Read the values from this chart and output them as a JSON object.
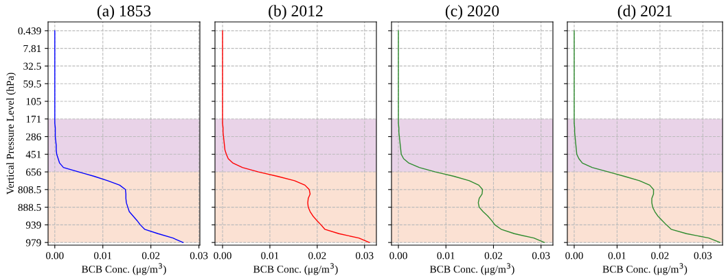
{
  "chart_data": [
    {
      "type": "line",
      "orientation": "horizontal",
      "title": "(a) 1853",
      "xlabel": "BCB Conc. (μg/m$^{3}$)",
      "ylabel": "Vertical Pressure Level (hPa)",
      "grid": true,
      "marker": "none",
      "line_style": "solid",
      "xlim": [
        -0.0014,
        0.0302
      ],
      "xticks": [
        {
          "value": 0,
          "label": "0.00"
        },
        {
          "value": 0.01,
          "label": "0.01"
        },
        {
          "value": 0.02,
          "label": "0.02"
        },
        {
          "value": 0.03,
          "label": "0.03"
        }
      ],
      "categories": [
        "0.439",
        null,
        null,
        null,
        "7.81",
        null,
        null,
        null,
        "32.5",
        null,
        null,
        null,
        "59.5",
        null,
        null,
        null,
        "105",
        null,
        null,
        null,
        "171",
        null,
        null,
        null,
        "286",
        null,
        null,
        null,
        "451",
        null,
        null,
        null,
        "656",
        null,
        null,
        null,
        "808.5",
        null,
        null,
        null,
        "888.5",
        null,
        null,
        null,
        "939",
        null,
        null,
        null,
        "979"
      ],
      "bands": [
        {
          "axis": "y",
          "from": "171",
          "to": "656",
          "color": "#e9d3e8"
        },
        {
          "axis": "y",
          "from": "656",
          "to": "979",
          "color": "#fbe1d3"
        }
      ],
      "series": [
        {
          "color": "#0000ff",
          "values": [
            0,
            0,
            0,
            0,
            0,
            0,
            0,
            0,
            0,
            0,
            0,
            0,
            0,
            0,
            0,
            0,
            0,
            0,
            0,
            0,
            0,
            0,
            0.0001,
            0.0001,
            0.0001,
            0.0002,
            0.0003,
            0.0003,
            0.0004,
            0.0007,
            0.001,
            0.0018,
            0.005,
            0.0082,
            0.011,
            0.0135,
            0.0147,
            0.0148,
            0.0148,
            0.0149,
            0.0152,
            0.0155,
            0.0163,
            0.0171,
            0.0178,
            0.0187,
            0.0215,
            0.0246,
            0.0267
          ]
        }
      ]
    },
    {
      "type": "line",
      "orientation": "horizontal",
      "title": "(b) 2012",
      "xlabel": "BCB Conc. (μg/m$^{3}$)",
      "grid": true,
      "marker": "none",
      "line_style": "solid",
      "tick_labels": "x",
      "xlim": [
        -0.0016,
        0.0325
      ],
      "xticks": [
        {
          "value": 0,
          "label": "0.00"
        },
        {
          "value": 0.01,
          "label": "0.01"
        },
        {
          "value": 0.02,
          "label": "0.02"
        },
        {
          "value": 0.03,
          "label": "0.03"
        }
      ],
      "categories": [
        "0.439",
        null,
        null,
        null,
        "7.81",
        null,
        null,
        null,
        "32.5",
        null,
        null,
        null,
        "59.5",
        null,
        null,
        null,
        "105",
        null,
        null,
        null,
        "171",
        null,
        null,
        null,
        "286",
        null,
        null,
        null,
        "451",
        null,
        null,
        null,
        "656",
        null,
        null,
        null,
        "808.5",
        null,
        null,
        null,
        "888.5",
        null,
        null,
        null,
        "939",
        null,
        null,
        null,
        "979"
      ],
      "bands": [
        {
          "axis": "y",
          "from": "171",
          "to": "656",
          "color": "#e9d3e8"
        },
        {
          "axis": "y",
          "from": "656",
          "to": "979",
          "color": "#fbe1d3"
        }
      ],
      "series": [
        {
          "color": "#ff0000",
          "values": [
            0,
            0,
            0,
            0,
            0,
            0,
            0,
            0,
            0,
            0,
            0,
            0,
            0,
            0,
            0,
            0,
            0,
            0,
            0,
            0,
            0,
            0,
            0.0001,
            0.0001,
            0.0002,
            0.0003,
            0.0004,
            0.0005,
            0.0008,
            0.0012,
            0.0022,
            0.0042,
            0.0076,
            0.0116,
            0.0152,
            0.0174,
            0.0183,
            0.0185,
            0.0181,
            0.018,
            0.0181,
            0.0185,
            0.0191,
            0.0199,
            0.0208,
            0.0216,
            0.0246,
            0.0288,
            0.031
          ]
        }
      ]
    },
    {
      "type": "line",
      "orientation": "horizontal",
      "title": "(c) 2020",
      "xlabel": "BCB Conc. (μg/m$^{3}$)",
      "grid": true,
      "marker": "none",
      "line_style": "solid",
      "tick_labels": "x",
      "xlim": [
        -0.00145,
        0.0325
      ],
      "xticks": [
        {
          "value": 0,
          "label": "0.00"
        },
        {
          "value": 0.01,
          "label": "0.01"
        },
        {
          "value": 0.02,
          "label": "0.02"
        },
        {
          "value": 0.03,
          "label": "0.03"
        }
      ],
      "categories": [
        "0.439",
        null,
        null,
        null,
        "7.81",
        null,
        null,
        null,
        "32.5",
        null,
        null,
        null,
        "59.5",
        null,
        null,
        null,
        "105",
        null,
        null,
        null,
        "171",
        null,
        null,
        null,
        "286",
        null,
        null,
        null,
        "451",
        null,
        null,
        null,
        "656",
        null,
        null,
        null,
        "808.5",
        null,
        null,
        null,
        "888.5",
        null,
        null,
        null,
        "939",
        null,
        null,
        null,
        "979"
      ],
      "bands": [
        {
          "axis": "y",
          "from": "171",
          "to": "656",
          "color": "#e9d3e8"
        },
        {
          "axis": "y",
          "from": "656",
          "to": "979",
          "color": "#fbe1d3"
        }
      ],
      "series": [
        {
          "color": "#2e8b2e",
          "values": [
            0,
            0,
            0,
            0,
            0,
            0,
            0,
            0,
            0,
            0,
            0,
            0,
            0,
            0,
            0,
            0,
            0,
            0,
            0,
            0,
            0,
            0,
            0.0001,
            0.0001,
            0.0002,
            0.0003,
            0.0004,
            0.0005,
            0.0006,
            0.0011,
            0.0022,
            0.0044,
            0.0078,
            0.0117,
            0.0149,
            0.0169,
            0.0177,
            0.0176,
            0.017,
            0.0168,
            0.017,
            0.0178,
            0.0188,
            0.0196,
            0.0203,
            0.0216,
            0.0244,
            0.0285,
            0.0307
          ]
        }
      ]
    },
    {
      "type": "line",
      "orientation": "horizontal",
      "title": "(d) 2021",
      "xlabel": "BCB Conc. (μg/m$^{3}$)",
      "grid": true,
      "marker": "none",
      "line_style": "solid",
      "tick_labels": "x",
      "xlim": [
        -0.0016,
        0.0346
      ],
      "xticks": [
        {
          "value": 0,
          "label": "0.00"
        },
        {
          "value": 0.01,
          "label": "0.01"
        },
        {
          "value": 0.02,
          "label": "0.02"
        },
        {
          "value": 0.03,
          "label": "0.03"
        }
      ],
      "categories": [
        "0.439",
        null,
        null,
        null,
        "7.81",
        null,
        null,
        null,
        "32.5",
        null,
        null,
        null,
        "59.5",
        null,
        null,
        null,
        "105",
        null,
        null,
        null,
        "171",
        null,
        null,
        null,
        "286",
        null,
        null,
        null,
        "451",
        null,
        null,
        null,
        "656",
        null,
        null,
        null,
        "808.5",
        null,
        null,
        null,
        "888.5",
        null,
        null,
        null,
        "939",
        null,
        null,
        null,
        "979"
      ],
      "bands": [
        {
          "axis": "y",
          "from": "171",
          "to": "656",
          "color": "#e9d3e8"
        },
        {
          "axis": "y",
          "from": "656",
          "to": "979",
          "color": "#fbe1d3"
        }
      ],
      "series": [
        {
          "color": "#2e8b2e",
          "values": [
            0,
            0,
            0,
            0,
            0,
            0,
            0,
            0,
            0,
            0,
            0,
            0,
            0,
            0,
            0,
            0,
            0,
            0,
            0,
            0,
            0,
            0,
            0.0001,
            0.0001,
            0.0002,
            0.0003,
            0.0004,
            0.0005,
            0.0006,
            0.0011,
            0.0019,
            0.0042,
            0.008,
            0.0117,
            0.0152,
            0.0176,
            0.0185,
            0.0185,
            0.0181,
            0.0181,
            0.0183,
            0.0188,
            0.0195,
            0.0205,
            0.0215,
            0.0226,
            0.0262,
            0.0314,
            0.034
          ]
        }
      ]
    }
  ]
}
